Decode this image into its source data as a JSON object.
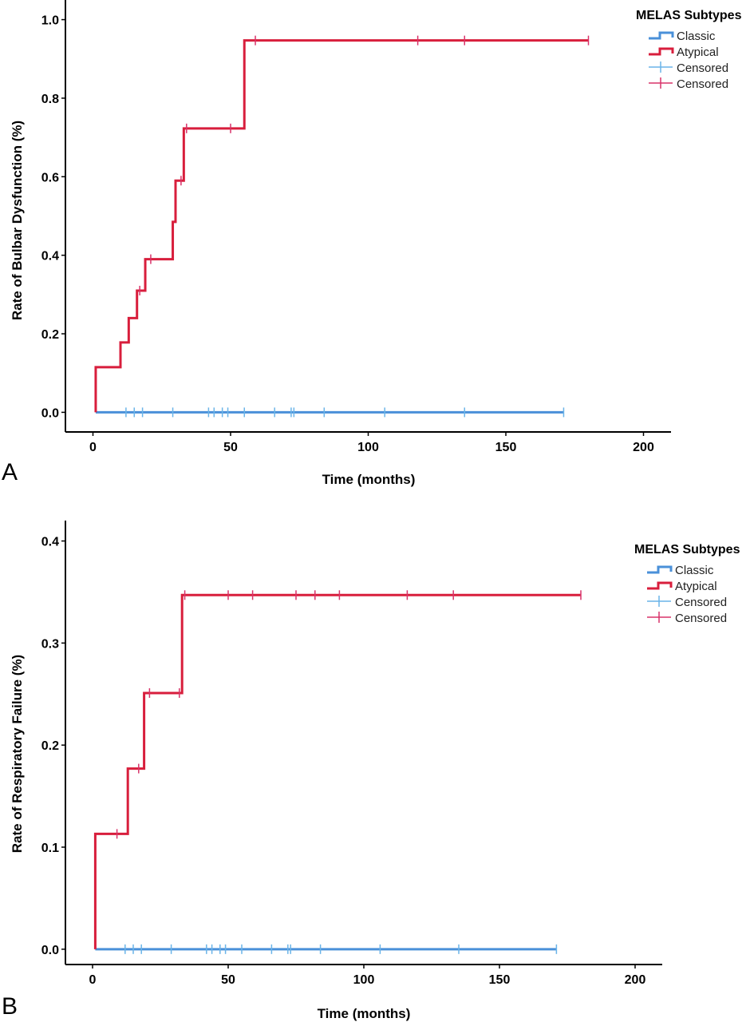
{
  "colors": {
    "classic": "#4a90d9",
    "atypical": "#d81e3c",
    "classic_censor": "#6ab4e8",
    "atypical_censor": "#d8336a"
  },
  "chart_data": [
    {
      "type": "line",
      "panel_label": "A",
      "xlabel": "Time (months)",
      "ylabel": "Rate of Bulbar Dysfunction (%)",
      "xlim": [
        -10,
        210
      ],
      "ylim": [
        -0.05,
        1.05
      ],
      "xticks": [
        0,
        50,
        100,
        150,
        200
      ],
      "xtick_labels": [
        "0",
        "50",
        "100",
        "150",
        "200"
      ],
      "yticks": [
        0.0,
        0.2,
        0.4,
        0.6,
        0.8,
        1.0
      ],
      "ytick_labels": [
        "0.0",
        "0.2",
        "0.4",
        "0.6",
        "0.8",
        "1.0"
      ],
      "legend": {
        "title": "MELAS Subtypes",
        "position": "top-right",
        "entries": [
          {
            "label": "Classic",
            "kind": "line",
            "color_key": "classic"
          },
          {
            "label": "Atypical",
            "kind": "line",
            "color_key": "atypical"
          },
          {
            "label": "Censored",
            "kind": "censor",
            "color_key": "classic_censor"
          },
          {
            "label": "Censored",
            "kind": "censor",
            "color_key": "atypical_censor"
          }
        ]
      },
      "series": [
        {
          "name": "Classic",
          "color_key": "classic",
          "censor_color_key": "classic_censor",
          "steps": [
            [
              1,
              0.0
            ],
            [
              171,
              0.0
            ]
          ],
          "censored": [
            [
              12,
              0.0
            ],
            [
              15,
              0.0
            ],
            [
              18,
              0.0
            ],
            [
              29,
              0.0
            ],
            [
              42,
              0.0
            ],
            [
              44,
              0.0
            ],
            [
              47,
              0.0
            ],
            [
              49,
              0.0
            ],
            [
              55,
              0.0
            ],
            [
              66,
              0.0
            ],
            [
              72,
              0.0
            ],
            [
              73,
              0.0
            ],
            [
              84,
              0.0
            ],
            [
              106,
              0.0
            ],
            [
              135,
              0.0
            ],
            [
              171,
              0.0
            ]
          ]
        },
        {
          "name": "Atypical",
          "color_key": "atypical",
          "censor_color_key": "atypical_censor",
          "steps": [
            [
              1,
              0.0
            ],
            [
              1,
              0.115
            ],
            [
              10,
              0.178
            ],
            [
              13,
              0.24
            ],
            [
              16,
              0.31
            ],
            [
              19,
              0.39
            ],
            [
              29,
              0.485
            ],
            [
              30,
              0.59
            ],
            [
              33,
              0.723
            ],
            [
              55,
              0.947
            ],
            [
              180,
              0.947
            ]
          ],
          "censored": [
            [
              17,
              0.31
            ],
            [
              21,
              0.39
            ],
            [
              32,
              0.59
            ],
            [
              34,
              0.723
            ],
            [
              50,
              0.723
            ],
            [
              59,
              0.947
            ],
            [
              118,
              0.947
            ],
            [
              135,
              0.947
            ],
            [
              180,
              0.947
            ]
          ]
        }
      ]
    },
    {
      "type": "line",
      "panel_label": "B",
      "xlabel": "Time (months)",
      "ylabel": "Rate of Respiratory Failure (%)",
      "xlim": [
        -10,
        210
      ],
      "ylim": [
        -0.015,
        0.42
      ],
      "xticks": [
        0,
        50,
        100,
        150,
        200
      ],
      "xtick_labels": [
        "0",
        "50",
        "100",
        "150",
        "200"
      ],
      "yticks": [
        0.0,
        0.1,
        0.2,
        0.3,
        0.4
      ],
      "ytick_labels": [
        "0.0",
        "0.1",
        "0.2",
        "0.3",
        "0.4"
      ],
      "legend": {
        "title": "MELAS Subtypes",
        "position": "top-right",
        "entries": [
          {
            "label": "Classic",
            "kind": "line",
            "color_key": "classic"
          },
          {
            "label": "Atypical",
            "kind": "line",
            "color_key": "atypical"
          },
          {
            "label": "Censored",
            "kind": "censor",
            "color_key": "classic_censor"
          },
          {
            "label": "Censored",
            "kind": "censor",
            "color_key": "atypical_censor"
          }
        ]
      },
      "series": [
        {
          "name": "Classic",
          "color_key": "classic",
          "censor_color_key": "classic_censor",
          "steps": [
            [
              1,
              0.0
            ],
            [
              171,
              0.0
            ]
          ],
          "censored": [
            [
              12,
              0.0
            ],
            [
              15,
              0.0
            ],
            [
              18,
              0.0
            ],
            [
              29,
              0.0
            ],
            [
              42,
              0.0
            ],
            [
              44,
              0.0
            ],
            [
              47,
              0.0
            ],
            [
              49,
              0.0
            ],
            [
              55,
              0.0
            ],
            [
              66,
              0.0
            ],
            [
              72,
              0.0
            ],
            [
              73,
              0.0
            ],
            [
              84,
              0.0
            ],
            [
              106,
              0.0
            ],
            [
              135,
              0.0
            ],
            [
              171,
              0.0
            ]
          ]
        },
        {
          "name": "Atypical",
          "color_key": "atypical",
          "censor_color_key": "atypical_censor",
          "steps": [
            [
              1,
              0.0
            ],
            [
              1,
              0.113
            ],
            [
              13,
              0.177
            ],
            [
              19,
              0.251
            ],
            [
              33,
              0.347
            ],
            [
              180,
              0.347
            ]
          ],
          "censored": [
            [
              9,
              0.113
            ],
            [
              17,
              0.177
            ],
            [
              21,
              0.251
            ],
            [
              32,
              0.251
            ],
            [
              34,
              0.347
            ],
            [
              50,
              0.347
            ],
            [
              59,
              0.347
            ],
            [
              75,
              0.347
            ],
            [
              82,
              0.347
            ],
            [
              91,
              0.347
            ],
            [
              116,
              0.347
            ],
            [
              133,
              0.347
            ],
            [
              180,
              0.347
            ]
          ]
        }
      ]
    }
  ]
}
